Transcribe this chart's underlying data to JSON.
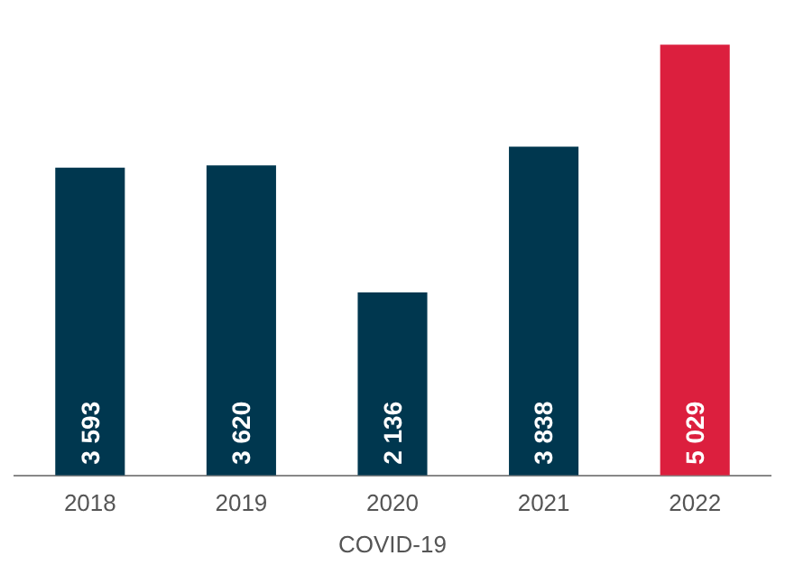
{
  "chart_data": {
    "type": "bar",
    "categories": [
      "2018",
      "2019",
      "2020",
      "2021",
      "2022"
    ],
    "values": [
      3593,
      3620,
      2136,
      3838,
      5029
    ],
    "colors": [
      "#00374f",
      "#00374f",
      "#00374f",
      "#00374f",
      "#dc1f3e"
    ],
    "value_labels": [
      "3 593",
      "3 620",
      "2 136",
      "3 838",
      "5 029"
    ],
    "annotations": [
      "COVID-19"
    ],
    "grid": false,
    "legend": false
  }
}
